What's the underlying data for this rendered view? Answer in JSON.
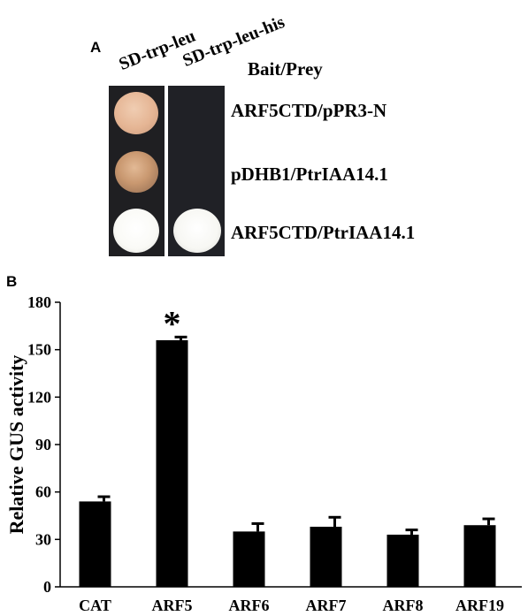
{
  "panel_a": {
    "letter": "A",
    "col_headers": [
      "SD-trp-leu",
      "SD-trp-leu-his"
    ],
    "bait_prey_header": "Bait/Prey",
    "rows": [
      "ARF5CTD/pPR3-N",
      "pDHB1/PtrIAA14.1",
      "ARF5CTD/PtrIAA14.1"
    ]
  },
  "panel_b": {
    "letter": "B"
  },
  "chart_data": {
    "type": "bar",
    "ylabel": "Relative GUS activity",
    "xlabel": "",
    "ylim": [
      0,
      180
    ],
    "yticks": [
      0,
      30,
      60,
      90,
      120,
      150,
      180
    ],
    "categories": [
      "CAT",
      "ARF5",
      "ARF6",
      "ARF7",
      "ARF8",
      "ARF19"
    ],
    "values": [
      54,
      156,
      35,
      38,
      33,
      39
    ],
    "errors": [
      3,
      2,
      5,
      6,
      3,
      4
    ],
    "annotations": [
      {
        "category": "ARF5",
        "text": "*"
      }
    ],
    "bar_color": "#000000"
  }
}
